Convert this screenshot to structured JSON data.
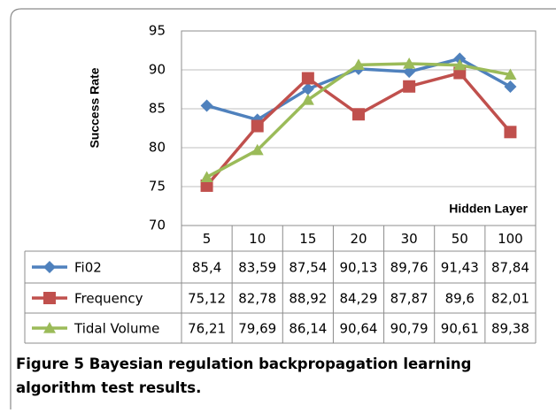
{
  "chart_data": {
    "type": "line",
    "y_label": "Success Rate",
    "x_label": "Hidden Layer",
    "categories": [
      "5",
      "10",
      "15",
      "20",
      "30",
      "50",
      "100"
    ],
    "series": [
      {
        "name": "Fi02",
        "color": "#4f81bd",
        "marker": "diamond",
        "values": [
          85.4,
          83.59,
          87.54,
          90.13,
          89.76,
          91.43,
          87.84
        ],
        "value_labels": [
          "85,4",
          "83,59",
          "87,54",
          "90,13",
          "89,76",
          "91,43",
          "87,84"
        ]
      },
      {
        "name": "Frequency",
        "color": "#c0504d",
        "marker": "square",
        "values": [
          75.12,
          82.78,
          88.92,
          84.29,
          87.87,
          89.6,
          82.01
        ],
        "value_labels": [
          "75,12",
          "82,78",
          "88,92",
          "84,29",
          "87,87",
          "89,6",
          "82,01"
        ]
      },
      {
        "name": "Tidal Volume",
        "color": "#9bbb59",
        "marker": "triangle",
        "values": [
          76.21,
          79.69,
          86.14,
          90.64,
          90.79,
          90.61,
          89.38
        ],
        "value_labels": [
          "76,21",
          "79,69",
          "86,14",
          "90,64",
          "90,79",
          "90,61",
          "89,38"
        ]
      }
    ],
    "ylim": [
      70,
      95
    ],
    "yticks": [
      70,
      75,
      80,
      85,
      90,
      95
    ],
    "grid": true,
    "caption_label": "Figure 5",
    "caption": "Bayesian regulation backpropagation learning algorithm test results."
  }
}
